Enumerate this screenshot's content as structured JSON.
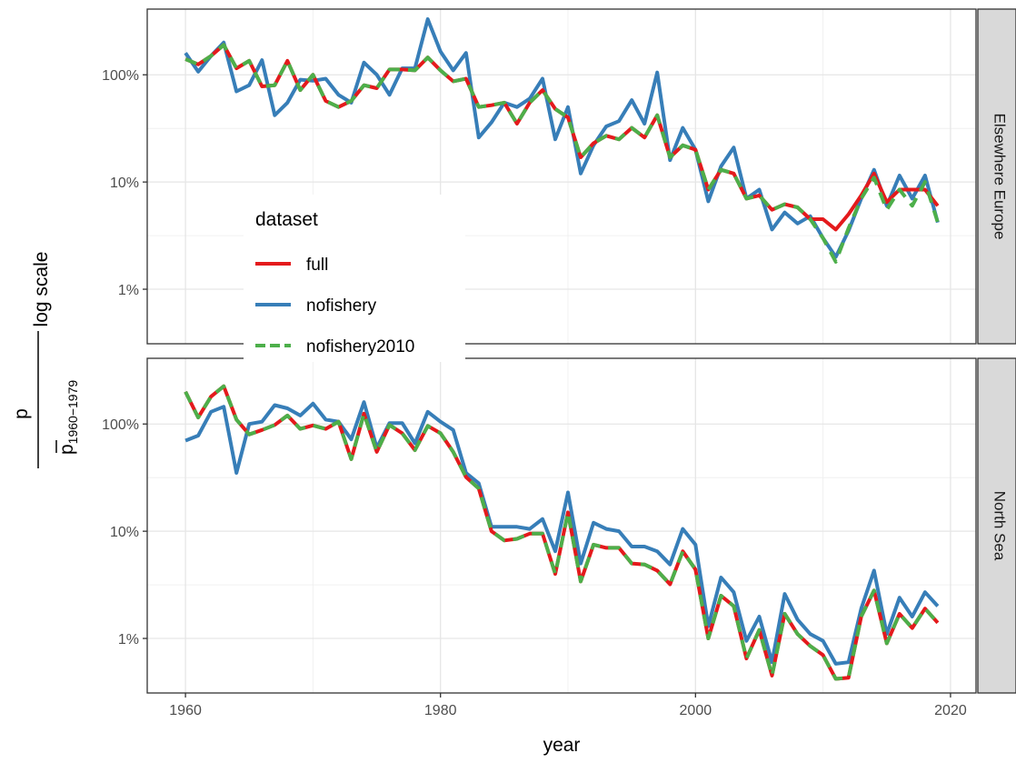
{
  "chart_data": {
    "type": "line",
    "xlabel": "year",
    "ylabel": {
      "scale_note": "log scale",
      "numerator": "p",
      "denominator": "p",
      "subscript": "1960−1979"
    },
    "y_scale": "log10",
    "x_ticks": [
      1960,
      1980,
      2000,
      2020
    ],
    "y_ticks": [
      {
        "value": 100,
        "label": "100%"
      },
      {
        "value": 10,
        "label": "10%"
      },
      {
        "value": 1,
        "label": "1%"
      }
    ],
    "xlim": [
      1957,
      2022
    ],
    "ylim_percent": [
      0.31,
      410
    ],
    "grid": true,
    "legend": {
      "title": "dataset",
      "placement": "overlapping-center-left",
      "entries": [
        {
          "name": "full",
          "color": "#e41a1c",
          "dash": "solid"
        },
        {
          "name": "nofishery",
          "color": "#377eb8",
          "dash": "solid"
        },
        {
          "name": "nofishery2010",
          "color": "#4daf4a",
          "dash": "dashed"
        }
      ]
    },
    "x": [
      1960,
      1961,
      1962,
      1963,
      1964,
      1965,
      1966,
      1967,
      1968,
      1969,
      1970,
      1971,
      1972,
      1973,
      1974,
      1975,
      1976,
      1977,
      1978,
      1979,
      1980,
      1981,
      1982,
      1983,
      1984,
      1985,
      1986,
      1987,
      1988,
      1989,
      1990,
      1991,
      1992,
      1993,
      1994,
      1995,
      1996,
      1997,
      1998,
      1999,
      2000,
      2001,
      2002,
      2003,
      2004,
      2005,
      2006,
      2007,
      2008,
      2009,
      2010,
      2011,
      2012,
      2013,
      2014,
      2015,
      2016,
      2017,
      2018,
      2019
    ],
    "panels": [
      {
        "strip": "Elsewhere Europe",
        "series": [
          {
            "name": "full",
            "values": [
              140,
              125,
              150,
              190,
              115,
              135,
              78,
              80,
              135,
              72,
              100,
              57,
              50,
              57,
              80,
              75,
              112,
              112,
              110,
              145,
              110,
              87,
              92,
              50,
              52,
              55,
              35,
              55,
              72,
              48,
              40,
              17,
              23,
              27,
              25,
              32,
              26,
              42,
              17,
              22,
              20,
              8.5,
              13,
              12,
              7,
              7.5,
              5.5,
              6.2,
              5.8,
              4.5,
              4.5,
              3.6,
              5,
              7.5,
              12,
              6.5,
              8.5,
              8.5,
              8.5,
              6
            ]
          },
          {
            "name": "nofishery",
            "values": [
              160,
              107,
              150,
              200,
              70,
              80,
              137,
              42,
              55,
              90,
              88,
              92,
              65,
              55,
              130,
              100,
              65,
              115,
              115,
              330,
              165,
              110,
              160,
              26,
              36,
              55,
              50,
              60,
              92,
              25,
              50,
              12,
              22,
              33,
              37,
              58,
              35,
              105,
              16,
              32,
              20,
              6.6,
              14,
              21,
              7,
              8.5,
              3.6,
              5.2,
              4.1,
              4.8,
              3,
              2,
              3.5,
              7,
              13,
              6,
              11.5,
              7,
              11.5,
              4.2
            ]
          },
          {
            "name": "nofishery2010",
            "values": [
              140,
              125,
              150,
              190,
              115,
              135,
              78,
              80,
              135,
              72,
              100,
              57,
              50,
              57,
              80,
              75,
              112,
              112,
              110,
              145,
              110,
              87,
              92,
              50,
              52,
              55,
              35,
              55,
              72,
              48,
              40,
              17,
              23,
              27,
              25,
              32,
              26,
              42,
              17,
              22,
              20,
              8.5,
              13,
              12,
              7,
              7.5,
              5.5,
              6.2,
              5.8,
              4.5,
              3,
              1.8,
              3.7,
              7,
              11,
              5.5,
              8.5,
              6,
              10,
              4.2
            ]
          }
        ]
      },
      {
        "strip": "North Sea",
        "series": [
          {
            "name": "full",
            "values": [
              200,
              115,
              180,
              225,
              110,
              80,
              88,
              98,
              120,
              90,
              97,
              90,
              105,
              47,
              125,
              55,
              98,
              82,
              57,
              96,
              82,
              55,
              32,
              25,
              10,
              8.2,
              8.5,
              9.5,
              9.5,
              4,
              15,
              3.4,
              7.5,
              7,
              7,
              5,
              4.9,
              4.3,
              3.2,
              6.5,
              4.4,
              1,
              2.5,
              2,
              0.65,
              1.2,
              0.45,
              1.7,
              1.1,
              0.85,
              0.7,
              0.42,
              0.43,
              1.6,
              2.8,
              0.9,
              1.7,
              1.25,
              1.9,
              1.4
            ]
          },
          {
            "name": "nofishery",
            "values": [
              70,
              78,
              130,
              145,
              35,
              100,
              105,
              150,
              140,
              120,
              155,
              110,
              105,
              72,
              160,
              60,
              102,
              102,
              66,
              130,
              105,
              88,
              35,
              28,
              11,
              11,
              11,
              10.5,
              13,
              6.5,
              23,
              5,
              12,
              10.5,
              10,
              7.2,
              7.2,
              6.5,
              4.9,
              10.5,
              7.5,
              1.3,
              3.7,
              2.7,
              0.95,
              1.6,
              0.6,
              2.6,
              1.5,
              1.1,
              0.95,
              0.58,
              0.6,
              1.9,
              4.3,
              1.1,
              2.4,
              1.6,
              2.7,
              2
            ]
          },
          {
            "name": "nofishery2010",
            "values": [
              200,
              115,
              180,
              225,
              110,
              80,
              88,
              98,
              120,
              90,
              97,
              90,
              105,
              47,
              125,
              55,
              98,
              82,
              57,
              96,
              82,
              55,
              32,
              25,
              10,
              8.2,
              8.5,
              9.5,
              9.5,
              4,
              15,
              3.4,
              7.5,
              7,
              7,
              5,
              4.9,
              4.3,
              3.2,
              6.5,
              4.4,
              1,
              2.5,
              2,
              0.65,
              1.2,
              0.45,
              1.7,
              1.1,
              0.85,
              0.7,
              0.42,
              0.43,
              1.6,
              2.8,
              0.9,
              1.7,
              1.25,
              1.9,
              1.4
            ]
          }
        ]
      }
    ]
  }
}
